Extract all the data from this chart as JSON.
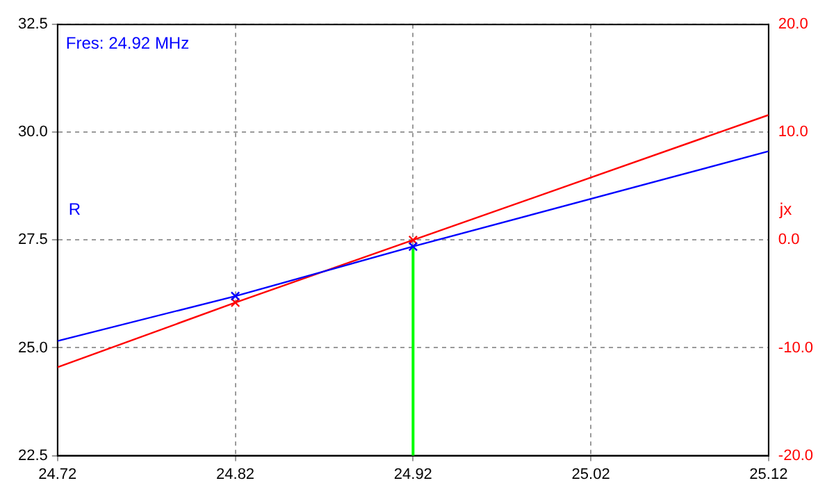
{
  "chart_data": {
    "type": "line",
    "annotations": [
      "Fres: 24.92 MHz"
    ],
    "ylabel": "R",
    "y2label": "jx",
    "xlim": [
      24.72,
      25.12
    ],
    "xticks": [
      24.72,
      24.82,
      24.92,
      25.02,
      25.12
    ],
    "ylim": [
      22.5,
      32.5
    ],
    "yticks": [
      22.5,
      {
        "value": 25,
        "label": "25.0"
      },
      27.5,
      {
        "value": 30,
        "label": "30.0"
      },
      32.5
    ],
    "y2lim": [
      -20,
      20
    ],
    "y2ticks": [
      {
        "value": -20,
        "label": "-20.0"
      },
      {
        "value": -10,
        "label": "-10.0"
      },
      {
        "value": 0,
        "label": "0.0"
      },
      {
        "value": 10,
        "label": "10.0"
      },
      {
        "value": 20,
        "label": "20.0"
      }
    ],
    "grid": true,
    "legend": false,
    "marker": "none",
    "series": [
      {
        "color": "#0000ff",
        "x": [
          24.72,
          24.82,
          24.92,
          25.12
        ],
        "values": [
          25.16,
          26.2,
          27.35,
          29.56
        ]
      },
      {
        "color": "#ff0000",
        "axis": "y2",
        "x": [
          24.72,
          24.82,
          24.92,
          25.12
        ],
        "values": [
          -11.8,
          -5.8,
          0,
          11.6
        ]
      },
      {
        "type": "scatter",
        "marker": "cross",
        "color": "#0000ff",
        "x": [
          24.82,
          24.92
        ],
        "values": [
          26.2,
          27.35
        ]
      },
      {
        "type": "scatter",
        "marker": "cross",
        "color": "#ff0000",
        "axis": "y2",
        "x": [
          24.82,
          24.92
        ],
        "values": [
          -5.8,
          0
        ]
      }
    ],
    "ref_lines": [
      {
        "axis": "x",
        "value": 24.92,
        "color": "#00ff00"
      }
    ]
  }
}
